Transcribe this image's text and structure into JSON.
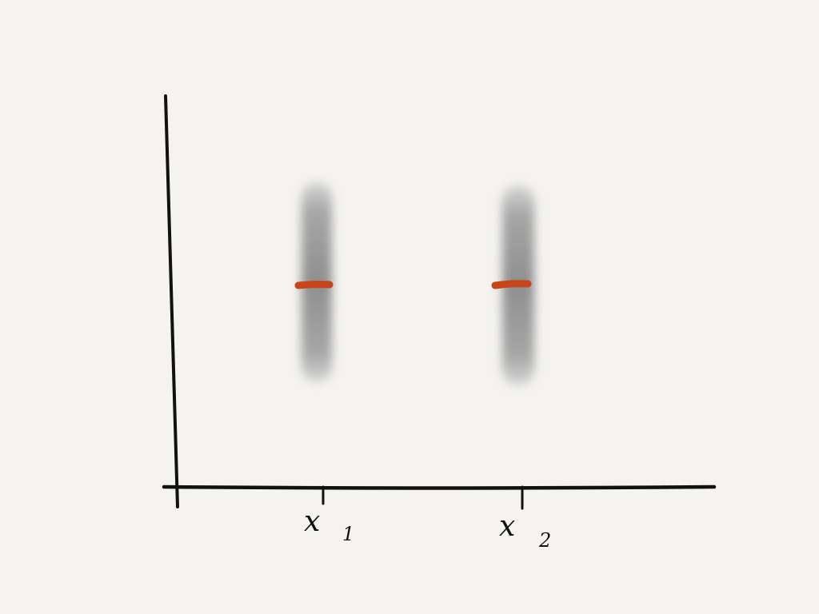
{
  "diagram": {
    "background_color": "#f4f3ef",
    "axis_color": "#111111",
    "band_color": "#8f8f8f",
    "mean_marker_color": "#c8441a",
    "x_ticks": [
      {
        "symbol": "x",
        "subscript": "1"
      },
      {
        "symbol": "x",
        "subscript": "2"
      }
    ],
    "bands": [
      {
        "at_tick": "x1"
      },
      {
        "at_tick": "x2"
      }
    ]
  }
}
